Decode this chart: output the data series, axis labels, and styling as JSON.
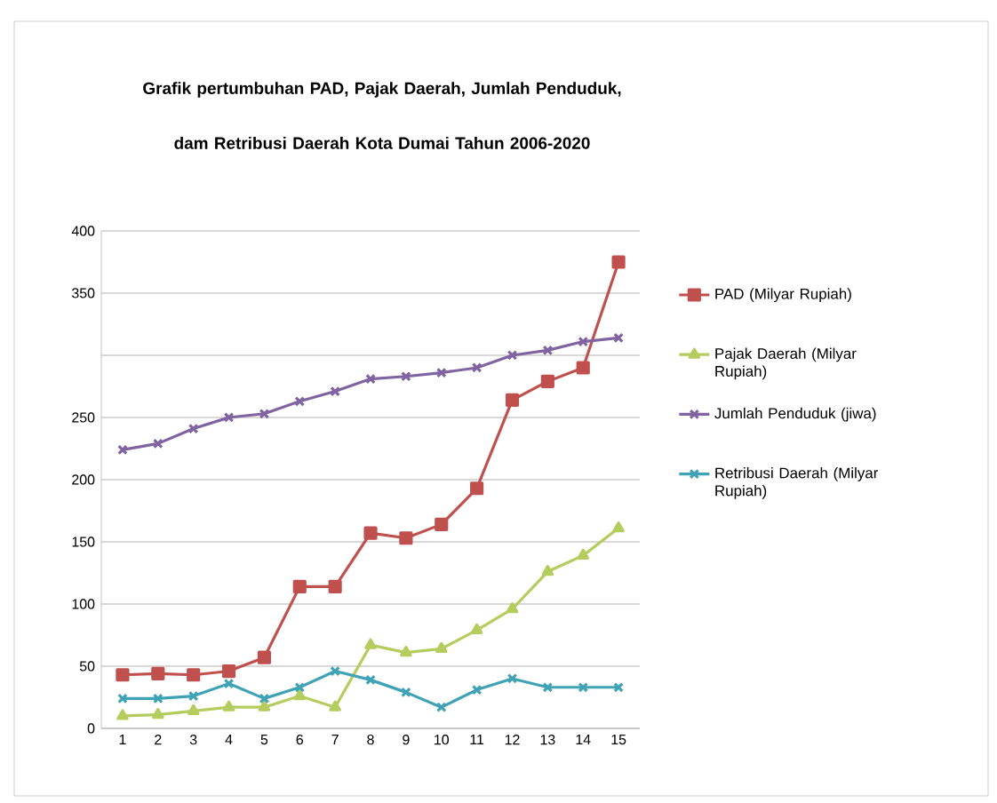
{
  "chart_data": {
    "type": "line",
    "title": "Grafik pertumbuhan PAD, Pajak Daerah, Jumlah Penduduk, dam Retribusi Daerah Kota Dumai Tahun 2006-2020",
    "categories": [
      "1",
      "2",
      "3",
      "4",
      "5",
      "6",
      "7",
      "8",
      "9",
      "10",
      "11",
      "12",
      "13",
      "14",
      "15"
    ],
    "ylim": [
      0,
      400
    ],
    "yticks": [
      0,
      50,
      100,
      150,
      200,
      250,
      {
        "value": 300,
        "label": null
      },
      350,
      400
    ],
    "grid": "y",
    "legend": "right",
    "series": [
      {
        "name": "PAD (Milyar Rupiah)",
        "color": "#c0504d",
        "marker": "square",
        "values": [
          43,
          44,
          43,
          46,
          57,
          114,
          114,
          157,
          153,
          164,
          193,
          264,
          279,
          290,
          375
        ]
      },
      {
        "name": "Pajak Daerah (Milyar Rupiah)",
        "color": "#b5cc5e",
        "marker": "triangle",
        "values": [
          10,
          11,
          14,
          17,
          17,
          26,
          17,
          67,
          61,
          64,
          79,
          96,
          126,
          139,
          161
        ]
      },
      {
        "name": "Jumlah Penduduk (jiwa)",
        "color": "#8064a2",
        "marker": "cross",
        "values": [
          224,
          229,
          241,
          250,
          253,
          263,
          271,
          281,
          283,
          286,
          290,
          300,
          304,
          311,
          314
        ]
      },
      {
        "name": "Retribusi Daerah (Milyar Rupiah)",
        "color": "#3fa3b5",
        "marker": "cross",
        "values": [
          24,
          24,
          26,
          36,
          24,
          33,
          46,
          39,
          29,
          17,
          31,
          40,
          33,
          33,
          33
        ]
      }
    ]
  }
}
